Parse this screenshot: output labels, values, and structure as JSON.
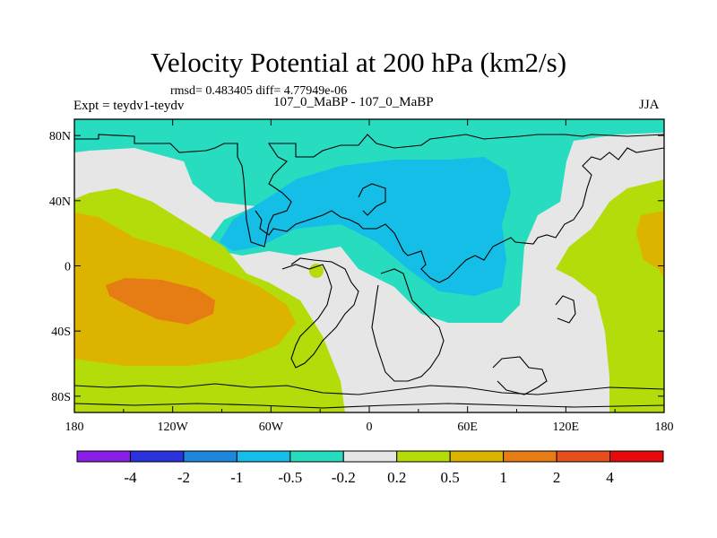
{
  "chart_data": {
    "type": "contour-map",
    "title": "Velocity Potential at 200 hPa (km2/s)",
    "stats_text": "rmsd= 0.483405  diff= 4.77949e-06",
    "left_label": "Expt = teydv1-teydv",
    "center_label": "107_0_MaBP - 107_0_MaBP",
    "right_label": "JJA",
    "x_ticks": [
      {
        "value": -180,
        "label": "180"
      },
      {
        "value": -120,
        "label": "120W"
      },
      {
        "value": -60,
        "label": "60W"
      },
      {
        "value": 0,
        "label": "0"
      },
      {
        "value": 60,
        "label": "60E"
      },
      {
        "value": 120,
        "label": "120E"
      },
      {
        "value": 180,
        "label": "180"
      }
    ],
    "y_ticks": [
      {
        "value": 80,
        "label": "80N"
      },
      {
        "value": 40,
        "label": "40N"
      },
      {
        "value": 0,
        "label": "0"
      },
      {
        "value": -40,
        "label": "40S"
      },
      {
        "value": -80,
        "label": "80S"
      }
    ],
    "xlim": [
      -180,
      180
    ],
    "ylim": [
      -90,
      90
    ],
    "colorbar": {
      "levels": [
        "-4",
        "-2",
        "-1",
        "-0.5",
        "-0.2",
        "0.2",
        "0.5",
        "1",
        "2",
        "4"
      ],
      "colors": [
        "#8a1ee6",
        "#2a32dc",
        "#1e87dc",
        "#14bee6",
        "#28dcc0",
        "#e6e6e6",
        "#b4dc0a",
        "#dcb400",
        "#e67d14",
        "#e6501e",
        "#e60a0a"
      ]
    }
  }
}
